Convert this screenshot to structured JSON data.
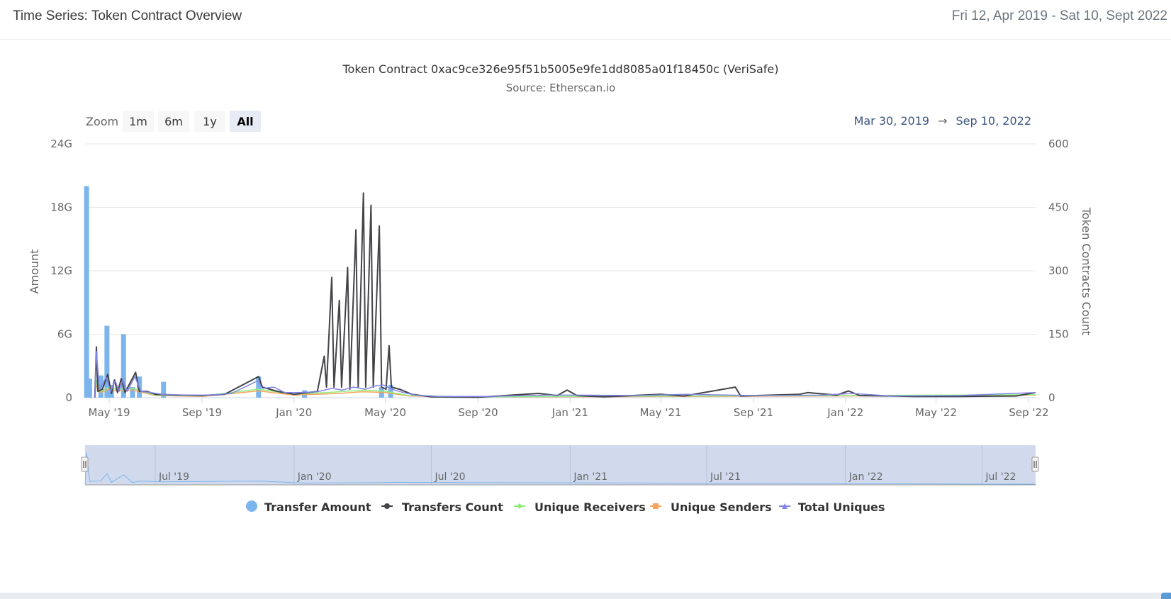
{
  "header": {
    "title": "Time Series: Token Contract Overview",
    "date_range": "Fri 12, Apr 2019 - Sat 10, Sept 2022"
  },
  "zoom": {
    "label": "Zoom",
    "buttons": [
      "1m",
      "6m",
      "1y",
      "All"
    ],
    "active": "All",
    "range_from": "Mar 30, 2019",
    "arrow": "→",
    "range_to": "Sep 10, 2022"
  },
  "navigator": {
    "labels": [
      "Jul '19",
      "Jan '20",
      "Jul '20",
      "Jan '21",
      "Jul '21",
      "Jan '22",
      "Jul '22"
    ]
  },
  "colors": {
    "transfer_amount": "#7cb5ec",
    "transfers_count": "#434348",
    "unique_receivers": "#90ed7d",
    "unique_senders": "#f7a35c",
    "total_uniques": "#8085e9",
    "navigator_bg": "#ccd6eb"
  },
  "chart_data": {
    "type": "bar",
    "title": "Token Contract 0xac9ce326e95f51b5005e9fe1dd8085a01f18450c (VeriSafe)",
    "subtitle": "Source: Etherscan.io",
    "x_range": [
      "2019-03-30",
      "2022-09-10"
    ],
    "x_ticks": [
      "May '19",
      "Sep '19",
      "Jan '20",
      "May '20",
      "Sep '20",
      "Jan '21",
      "May '21",
      "Sep '21",
      "Jan '22",
      "May '22",
      "Sep '22"
    ],
    "x_tick_dates": [
      "2019-05-01",
      "2019-09-01",
      "2020-01-01",
      "2020-05-01",
      "2020-09-01",
      "2021-01-01",
      "2021-05-01",
      "2021-09-01",
      "2022-01-01",
      "2022-05-01",
      "2022-09-01"
    ],
    "y_left": {
      "label": "Amount",
      "min": 0,
      "max": 24,
      "ticks": [
        0,
        6,
        12,
        18,
        24
      ],
      "tick_labels": [
        "0",
        "6G",
        "12G",
        "18G",
        "24G"
      ]
    },
    "y_right": {
      "label": "Token Contracts Count",
      "min": 0,
      "max": 600,
      "ticks": [
        0,
        150,
        300,
        450,
        600
      ],
      "tick_labels": [
        "0",
        "150",
        "300",
        "450",
        "600"
      ]
    },
    "legend": [
      "Transfer Amount",
      "Transfers Count",
      "Unique Receivers",
      "Unique Senders",
      "Total Uniques"
    ],
    "legend_position": "bottom-center",
    "series": [
      {
        "name": "Transfer Amount",
        "type": "column",
        "axis": "left",
        "unit": "G",
        "points": [
          [
            "2019-04-01",
            20.0
          ],
          [
            "2019-04-05",
            1.8
          ],
          [
            "2019-04-20",
            2.1
          ],
          [
            "2019-04-28",
            6.8
          ],
          [
            "2019-05-04",
            1.2
          ],
          [
            "2019-05-20",
            6.0
          ],
          [
            "2019-06-01",
            1.0
          ],
          [
            "2019-06-10",
            2.0
          ],
          [
            "2019-07-12",
            1.5
          ],
          [
            "2019-11-15",
            2.0
          ],
          [
            "2020-01-15",
            0.7
          ],
          [
            "2020-04-26",
            1.0
          ],
          [
            "2020-05-08",
            1.2
          ]
        ]
      },
      {
        "name": "Transfers Count",
        "type": "line",
        "axis": "right",
        "points": [
          [
            "2019-04-12",
            0
          ],
          [
            "2019-04-14",
            120
          ],
          [
            "2019-04-16",
            15
          ],
          [
            "2019-04-22",
            20
          ],
          [
            "2019-04-29",
            55
          ],
          [
            "2019-05-04",
            10
          ],
          [
            "2019-05-08",
            42
          ],
          [
            "2019-05-12",
            12
          ],
          [
            "2019-05-17",
            45
          ],
          [
            "2019-05-22",
            12
          ],
          [
            "2019-06-05",
            60
          ],
          [
            "2019-06-10",
            15
          ],
          [
            "2019-06-20",
            15
          ],
          [
            "2019-07-01",
            8
          ],
          [
            "2019-08-01",
            6
          ],
          [
            "2019-09-01",
            5
          ],
          [
            "2019-10-01",
            8
          ],
          [
            "2019-11-15",
            50
          ],
          [
            "2019-11-20",
            25
          ],
          [
            "2019-12-10",
            15
          ],
          [
            "2020-01-01",
            8
          ],
          [
            "2020-01-20",
            12
          ],
          [
            "2020-02-01",
            15
          ],
          [
            "2020-02-10",
            98
          ],
          [
            "2020-02-13",
            25
          ],
          [
            "2020-02-20",
            284
          ],
          [
            "2020-02-23",
            25
          ],
          [
            "2020-03-01",
            230
          ],
          [
            "2020-03-04",
            25
          ],
          [
            "2020-03-12",
            308
          ],
          [
            "2020-03-15",
            20
          ],
          [
            "2020-03-23",
            397
          ],
          [
            "2020-03-26",
            25
          ],
          [
            "2020-04-02",
            484
          ],
          [
            "2020-04-05",
            25
          ],
          [
            "2020-04-12",
            455
          ],
          [
            "2020-04-15",
            25
          ],
          [
            "2020-04-23",
            406
          ],
          [
            "2020-04-26",
            25
          ],
          [
            "2020-05-02",
            20
          ],
          [
            "2020-05-06",
            123
          ],
          [
            "2020-05-09",
            25
          ],
          [
            "2020-05-20",
            20
          ],
          [
            "2020-06-05",
            8
          ],
          [
            "2020-07-01",
            2
          ],
          [
            "2020-09-01",
            1
          ],
          [
            "2020-11-20",
            10
          ],
          [
            "2020-12-15",
            5
          ],
          [
            "2020-12-28",
            18
          ],
          [
            "2021-01-10",
            5
          ],
          [
            "2021-02-15",
            2
          ],
          [
            "2021-05-01",
            8
          ],
          [
            "2021-06-01",
            4
          ],
          [
            "2021-08-08",
            25
          ],
          [
            "2021-08-15",
            4
          ],
          [
            "2021-11-01",
            8
          ],
          [
            "2021-11-12",
            12
          ],
          [
            "2021-12-20",
            6
          ],
          [
            "2022-01-05",
            16
          ],
          [
            "2022-01-20",
            5
          ],
          [
            "2022-04-01",
            3
          ],
          [
            "2022-06-01",
            3
          ],
          [
            "2022-08-15",
            4
          ],
          [
            "2022-09-10",
            12
          ]
        ]
      },
      {
        "name": "Unique Receivers",
        "type": "line",
        "axis": "right",
        "points": [
          [
            "2019-04-12",
            0
          ],
          [
            "2019-04-14",
            40
          ],
          [
            "2019-04-20",
            15
          ],
          [
            "2019-05-01",
            25
          ],
          [
            "2019-05-10",
            20
          ],
          [
            "2019-06-01",
            22
          ],
          [
            "2019-07-01",
            6
          ],
          [
            "2019-09-01",
            4
          ],
          [
            "2019-11-15",
            20
          ],
          [
            "2020-01-01",
            8
          ],
          [
            "2020-03-01",
            14
          ],
          [
            "2020-04-01",
            18
          ],
          [
            "2020-05-01",
            15
          ],
          [
            "2020-06-01",
            5
          ],
          [
            "2020-09-01",
            2
          ],
          [
            "2021-01-01",
            3
          ],
          [
            "2021-06-01",
            4
          ],
          [
            "2022-01-01",
            5
          ],
          [
            "2022-09-10",
            7
          ]
        ]
      },
      {
        "name": "Unique Senders",
        "type": "line",
        "axis": "right",
        "points": [
          [
            "2019-04-12",
            0
          ],
          [
            "2019-04-14",
            30
          ],
          [
            "2019-04-20",
            12
          ],
          [
            "2019-05-01",
            20
          ],
          [
            "2019-05-10",
            16
          ],
          [
            "2019-06-01",
            18
          ],
          [
            "2019-07-01",
            5
          ],
          [
            "2019-09-01",
            3
          ],
          [
            "2019-11-15",
            16
          ],
          [
            "2020-01-01",
            6
          ],
          [
            "2020-03-01",
            10
          ],
          [
            "2020-04-01",
            14
          ],
          [
            "2020-05-01",
            12
          ],
          [
            "2020-06-01",
            4
          ],
          [
            "2020-09-01",
            2
          ],
          [
            "2021-01-01",
            2
          ],
          [
            "2021-06-01",
            3
          ],
          [
            "2022-01-01",
            4
          ],
          [
            "2022-09-10",
            6
          ]
        ]
      },
      {
        "name": "Total Uniques",
        "type": "line",
        "axis": "right",
        "points": [
          [
            "2019-04-12",
            0
          ],
          [
            "2019-04-14",
            110
          ],
          [
            "2019-04-18",
            20
          ],
          [
            "2019-04-27",
            48
          ],
          [
            "2019-05-03",
            15
          ],
          [
            "2019-05-09",
            40
          ],
          [
            "2019-05-14",
            15
          ],
          [
            "2019-05-19",
            42
          ],
          [
            "2019-05-25",
            15
          ],
          [
            "2019-06-04",
            50
          ],
          [
            "2019-06-12",
            15
          ],
          [
            "2019-06-25",
            12
          ],
          [
            "2019-07-10",
            8
          ],
          [
            "2019-08-10",
            6
          ],
          [
            "2019-09-10",
            6
          ],
          [
            "2019-10-10",
            10
          ],
          [
            "2019-11-14",
            40
          ],
          [
            "2019-11-20",
            22
          ],
          [
            "2019-12-05",
            25
          ],
          [
            "2019-12-20",
            12
          ],
          [
            "2020-01-10",
            12
          ],
          [
            "2020-02-01",
            14
          ],
          [
            "2020-02-20",
            22
          ],
          [
            "2020-03-05",
            18
          ],
          [
            "2020-03-20",
            25
          ],
          [
            "2020-04-05",
            20
          ],
          [
            "2020-04-18",
            28
          ],
          [
            "2020-04-28",
            30
          ],
          [
            "2020-05-10",
            20
          ],
          [
            "2020-05-25",
            12
          ],
          [
            "2020-06-10",
            6
          ],
          [
            "2020-07-10",
            3
          ],
          [
            "2020-09-10",
            3
          ],
          [
            "2020-12-01",
            6
          ],
          [
            "2021-01-10",
            6
          ],
          [
            "2021-04-01",
            5
          ],
          [
            "2021-06-01",
            8
          ],
          [
            "2021-09-01",
            5
          ],
          [
            "2021-12-01",
            6
          ],
          [
            "2022-01-10",
            10
          ],
          [
            "2022-03-01",
            4
          ],
          [
            "2022-06-01",
            5
          ],
          [
            "2022-09-10",
            12
          ]
        ]
      }
    ]
  }
}
